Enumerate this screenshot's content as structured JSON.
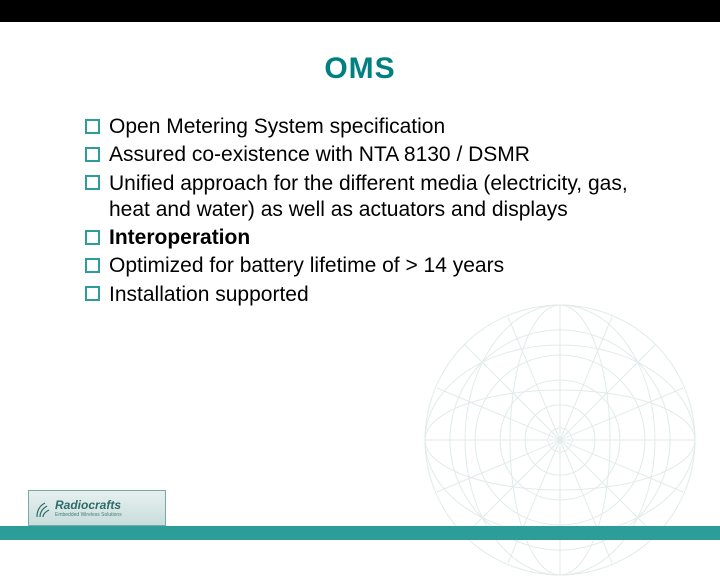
{
  "colors": {
    "top_bar": "#000000",
    "title": "#008080",
    "text": "#000000",
    "bullet_stroke": "#2d9d9a",
    "footer_bar": "#2d9d9a",
    "logo_text": "#2d6b68",
    "globe_stroke": "#c8dcda"
  },
  "title": "OMS",
  "title_fontsize": 30,
  "body_fontsize": 21,
  "bullets": [
    {
      "text": "Open Metering System specification",
      "bold": false
    },
    {
      "text": "Assured co-existence with NTA 8130 / DSMR",
      "bold": false
    },
    {
      "text": "Unified approach for the different media (electricity, gas, heat and water) as well as actuators and displays",
      "bold": false
    },
    {
      "text": "Interoperation",
      "bold": true
    },
    {
      "text": "Optimized for battery lifetime of > 14 years",
      "bold": false
    },
    {
      "text": "Installation supported",
      "bold": false
    }
  ],
  "logo": {
    "name": "Radiocrafts",
    "tagline": "Embedded Wireless Solutions"
  }
}
